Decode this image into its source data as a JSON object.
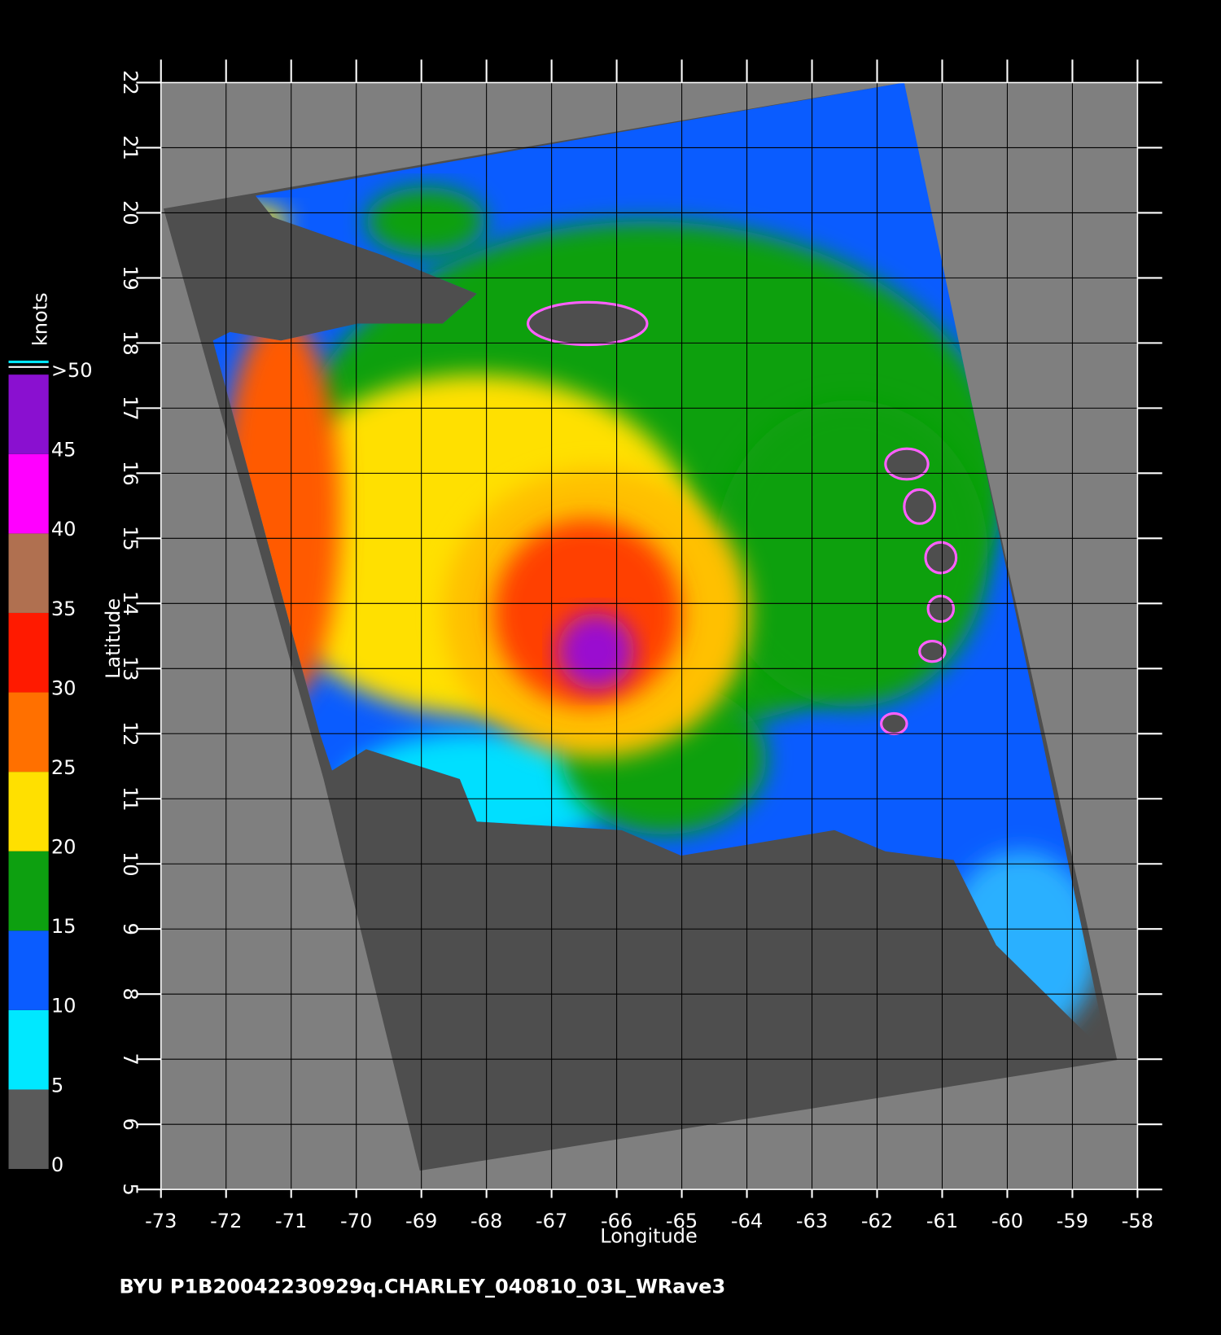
{
  "map": {
    "xlabel": "Longitude",
    "ylabel": "Latitude",
    "xlim": [
      -73,
      -58
    ],
    "ylim": [
      5,
      22
    ],
    "xticks": [
      -73,
      -72,
      -71,
      -70,
      -69,
      -68,
      -67,
      -66,
      -65,
      -64,
      -63,
      -62,
      -61,
      -60,
      -59,
      -58
    ],
    "yticks": [
      5,
      6,
      7,
      8,
      9,
      10,
      11,
      12,
      13,
      14,
      15,
      16,
      17,
      18,
      19,
      20,
      21,
      22
    ],
    "colorbar": {
      "label": "knots",
      "lim": [
        0,
        50
      ],
      "ticks": [
        0,
        5,
        10,
        15,
        20,
        25,
        30,
        35,
        40,
        45,
        {
          "value": 50,
          "label": ">50"
        }
      ],
      "colors": [
        "#5a5a5a",
        "#00e8ff",
        "#0a5cff",
        "#0da010",
        "#ffe000",
        "#ff7000",
        "#ff1a00",
        "#b07050",
        "#ff00ff",
        "#8a10d0"
      ]
    },
    "footer": "BYU  P1B20042230929q.CHARLEY_040810_03L_WRave3"
  }
}
